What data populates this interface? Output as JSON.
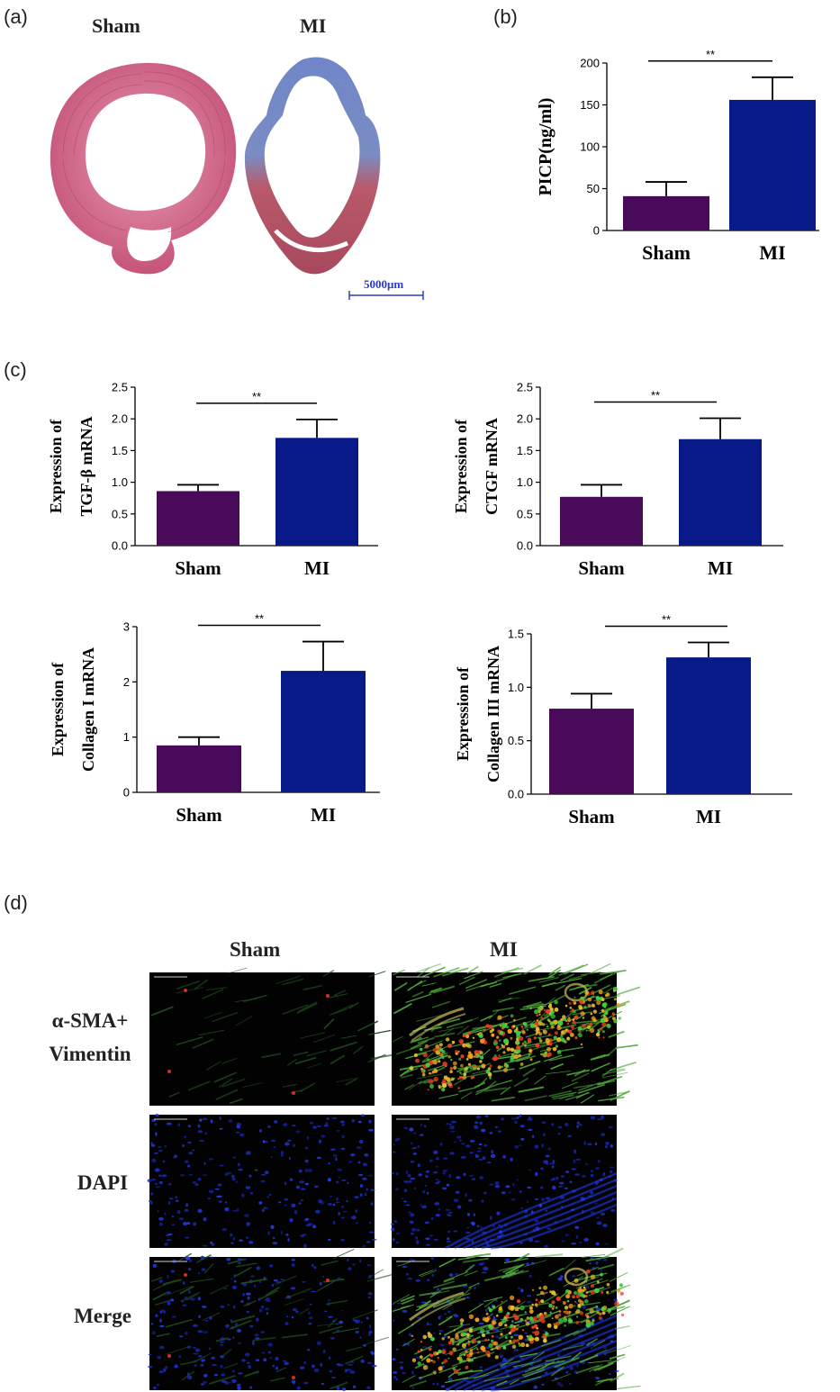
{
  "panel_a": {
    "label": "(a)",
    "sham_title": "Sham",
    "mi_title": "MI",
    "scale_bar": "5000μm"
  },
  "panel_b": {
    "label": "(b)"
  },
  "panel_c": {
    "label": "(c)"
  },
  "panel_d": {
    "label": "(d)",
    "col_sham": "Sham",
    "col_mi": "MI",
    "row1_line1": "α-SMA+",
    "row1_line2": "Vimentin",
    "row2": "DAPI",
    "row3": "Merge"
  },
  "colors": {
    "sham": "#4a0a5c",
    "mi": "#081a88",
    "he_pink": "#c9587a",
    "trichrome_blue": "#6f86c8"
  },
  "chart_data": [
    {
      "id": "b",
      "type": "bar",
      "categories": [
        "Sham",
        "MI"
      ],
      "values": [
        41,
        156
      ],
      "errors": [
        17,
        27
      ],
      "ylabel": "PICP(ng/ml)",
      "ylim": [
        0,
        200
      ],
      "yticks": [
        "0",
        "50",
        "100",
        "150",
        "200"
      ],
      "annotation": "**"
    },
    {
      "id": "c1",
      "type": "bar",
      "categories": [
        "Sham",
        "MI"
      ],
      "values": [
        0.86,
        1.7
      ],
      "errors": [
        0.1,
        0.29
      ],
      "ylabel_line1": "Expression of",
      "ylabel_line2": "TGF-β mRNA",
      "ylim": [
        0,
        2.5
      ],
      "yticks": [
        "0.0",
        "0.5",
        "1.0",
        "1.5",
        "2.0",
        "2.5"
      ],
      "annotation": "**"
    },
    {
      "id": "c2",
      "type": "bar",
      "categories": [
        "Sham",
        "MI"
      ],
      "values": [
        0.77,
        1.68
      ],
      "errors": [
        0.19,
        0.33
      ],
      "ylabel_line1": "Expression of",
      "ylabel_line2": "CTGF mRNA",
      "ylim": [
        0,
        2.5
      ],
      "yticks": [
        "0.0",
        "0.5",
        "1.0",
        "1.5",
        "2.0",
        "2.5"
      ],
      "annotation": "**"
    },
    {
      "id": "c3",
      "type": "bar",
      "categories": [
        "Sham",
        "MI"
      ],
      "values": [
        0.85,
        2.2
      ],
      "errors": [
        0.15,
        0.53
      ],
      "ylabel_line1": "Expression of",
      "ylabel_line2": "Collagen I mRNA",
      "ylim": [
        0,
        3
      ],
      "yticks": [
        "0",
        "1",
        "2",
        "3"
      ],
      "annotation": "**"
    },
    {
      "id": "c4",
      "type": "bar",
      "categories": [
        "Sham",
        "MI"
      ],
      "values": [
        0.8,
        1.28
      ],
      "errors": [
        0.14,
        0.14
      ],
      "ylabel_line1": "Expression of",
      "ylabel_line2": "Collagen III mRNA",
      "ylim": [
        0,
        1.5
      ],
      "yticks": [
        "0.0",
        "0.5",
        "1.0",
        "1.5"
      ],
      "annotation": "**"
    }
  ]
}
